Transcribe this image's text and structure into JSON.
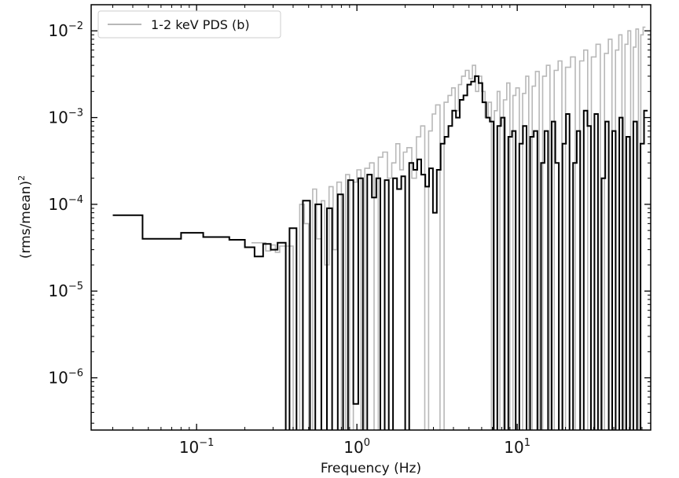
{
  "chart_data": {
    "type": "line",
    "title": "",
    "xlabel": "Frequency (Hz)",
    "ylabel": "(rms/mean)",
    "ylabel_sup": "2",
    "x_scale": "log",
    "y_scale": "log",
    "xlim": [
      0.022,
      68
    ],
    "ylim": [
      2.5e-07,
      0.02
    ],
    "x_ticks": [
      {
        "value": 0.1,
        "base": "10",
        "exp": "−1"
      },
      {
        "value": 1,
        "base": "10",
        "exp": "0"
      },
      {
        "value": 10,
        "base": "10",
        "exp": "1"
      }
    ],
    "y_ticks": [
      {
        "value": 1e-06,
        "base": "10",
        "exp": "−6"
      },
      {
        "value": 1e-05,
        "base": "10",
        "exp": "−5"
      },
      {
        "value": 0.0001,
        "base": "10",
        "exp": "−4"
      },
      {
        "value": 0.001,
        "base": "10",
        "exp": "−3"
      },
      {
        "value": 0.01,
        "base": "10",
        "exp": "−2"
      }
    ],
    "grid": false,
    "legend_position": "top-left",
    "legend": [
      {
        "label": "1-2 keV PDS (b)",
        "color": "#b8b8b8"
      }
    ],
    "series": [
      {
        "name": "1-2 keV PDS (b)",
        "color": "#b8b8b8",
        "drawstyle": "steps",
        "x": [
          0.22,
          0.25,
          0.27,
          0.29,
          0.31,
          0.33,
          0.36,
          0.4,
          0.44,
          0.47,
          0.5,
          0.53,
          0.56,
          0.6,
          0.63,
          0.67,
          0.71,
          0.75,
          0.8,
          0.85,
          0.9,
          0.95,
          1.0,
          1.06,
          1.12,
          1.2,
          1.28,
          1.36,
          1.45,
          1.55,
          1.65,
          1.75,
          1.85,
          1.95,
          2.05,
          2.2,
          2.35,
          2.5,
          2.65,
          2.8,
          2.95,
          3.1,
          3.3,
          3.5,
          3.7,
          3.9,
          4.1,
          4.3,
          4.5,
          4.75,
          5.0,
          5.25,
          5.5,
          5.75,
          6.0,
          6.3,
          6.6,
          6.9,
          7.2,
          7.5,
          7.8,
          8.2,
          8.6,
          9.0,
          9.4,
          9.8,
          10.3,
          10.8,
          11.3,
          11.8,
          12.4,
          13.0,
          13.7,
          14.4,
          15.2,
          16.0,
          17.0,
          18.0,
          19.0,
          20.0,
          21.5,
          23.0,
          24.5,
          26.0,
          27.5,
          29.0,
          31.0,
          33.0,
          35.0,
          37.0,
          39.0,
          41.0,
          43.0,
          45.0,
          47.0,
          49.0,
          51.0,
          53.0,
          55.0,
          57.0,
          59.0,
          61.0
        ],
        "y": [
          3.6e-05,
          3.6e-05,
          2.9e-05,
          3.4e-05,
          2.8e-05,
          3.3e-05,
          3.3e-05,
          1e-07,
          0.0001,
          6e-05,
          1e-07,
          0.00015,
          4e-05,
          0.00011,
          2e-05,
          0.00016,
          3e-05,
          0.00018,
          1e-07,
          0.00022,
          1e-07,
          0.00018,
          0.00025,
          1e-07,
          0.00026,
          0.0003,
          1e-07,
          0.00035,
          0.0004,
          0.0002,
          0.0003,
          0.0005,
          0.00025,
          0.0004,
          0.00045,
          0.0002,
          0.0006,
          0.0008,
          1e-07,
          0.0007,
          0.0011,
          0.0014,
          1e-07,
          0.0015,
          0.0018,
          0.0022,
          0.0012,
          0.0024,
          0.003,
          0.0035,
          0.0028,
          0.004,
          0.002,
          0.003,
          0.002,
          0.001,
          0.0015,
          1e-07,
          0.0012,
          0.002,
          1e-07,
          0.0016,
          0.0025,
          1e-07,
          0.0018,
          0.0022,
          1e-07,
          0.0019,
          0.003,
          1e-07,
          0.0023,
          0.0034,
          1e-07,
          0.003,
          0.004,
          1e-07,
          0.0035,
          0.0045,
          1e-07,
          0.0038,
          0.005,
          1e-07,
          0.0045,
          0.006,
          1e-07,
          0.005,
          0.007,
          1e-07,
          0.0055,
          0.008,
          1e-07,
          0.006,
          0.009,
          1e-07,
          0.007,
          0.01,
          1e-07,
          0.0065,
          0.0105,
          1e-07,
          0.009,
          0.011
        ]
      },
      {
        "name": "",
        "color": "#000000",
        "drawstyle": "steps",
        "x": [
          0.03,
          0.046,
          0.08,
          0.11,
          0.16,
          0.2,
          0.23,
          0.26,
          0.29,
          0.32,
          0.36,
          0.38,
          0.42,
          0.46,
          0.51,
          0.55,
          0.6,
          0.65,
          0.7,
          0.76,
          0.82,
          0.88,
          0.95,
          1.02,
          1.09,
          1.16,
          1.24,
          1.32,
          1.4,
          1.49,
          1.58,
          1.68,
          1.78,
          1.89,
          2.0,
          2.12,
          2.25,
          2.38,
          2.52,
          2.67,
          2.82,
          2.98,
          3.15,
          3.33,
          3.52,
          3.72,
          3.93,
          4.15,
          4.38,
          4.62,
          4.88,
          5.15,
          5.44,
          5.74,
          6.06,
          6.4,
          6.75,
          7.12,
          7.51,
          7.92,
          8.35,
          8.8,
          9.28,
          9.78,
          10.3,
          10.85,
          11.43,
          12.04,
          12.68,
          13.35,
          14.06,
          14.8,
          15.58,
          16.4,
          17.27,
          18.18,
          19.14,
          20.15,
          21.2,
          22.3,
          23.5,
          24.7,
          26.0,
          27.4,
          28.8,
          30.3,
          31.9,
          33.6,
          35.4,
          37.2,
          39.1,
          41.1,
          43.3,
          45.5,
          47.9,
          50.4,
          53.0,
          55.8,
          58.7,
          61.8
        ],
        "y": [
          7.5e-05,
          4e-05,
          4.7e-05,
          4.2e-05,
          3.9e-05,
          3.2e-05,
          2.5e-05,
          3.5e-05,
          3e-05,
          3.6e-05,
          1e-07,
          5.3e-05,
          1e-07,
          0.00011,
          1e-07,
          0.0001,
          1e-07,
          9e-05,
          1e-07,
          0.00013,
          1e-07,
          0.00019,
          5e-07,
          0.0002,
          1e-07,
          0.00022,
          0.00012,
          0.0002,
          1e-07,
          0.00019,
          1e-07,
          0.0002,
          0.00015,
          0.00021,
          1e-07,
          0.0003,
          0.00025,
          0.00033,
          0.00022,
          0.00016,
          0.00026,
          8e-05,
          0.00025,
          0.0005,
          0.0006,
          0.0008,
          0.0012,
          0.001,
          0.0016,
          0.0018,
          0.0024,
          0.0026,
          0.003,
          0.0025,
          0.0015,
          0.001,
          0.0009,
          1e-07,
          0.0008,
          0.001,
          1e-07,
          0.0006,
          0.0007,
          1e-07,
          0.0005,
          0.0008,
          1e-07,
          0.0006,
          0.0007,
          1e-07,
          0.0003,
          0.0007,
          1e-07,
          0.0009,
          0.0003,
          1e-07,
          0.0005,
          0.0011,
          1e-07,
          0.0003,
          0.0007,
          1e-07,
          0.0012,
          0.0008,
          1e-07,
          0.0011,
          1e-07,
          0.0002,
          0.0009,
          1e-07,
          0.0007,
          1e-07,
          0.001,
          1e-07,
          0.0006,
          1e-07,
          0.0009,
          1e-07,
          0.0005,
          0.0012
        ]
      }
    ]
  }
}
